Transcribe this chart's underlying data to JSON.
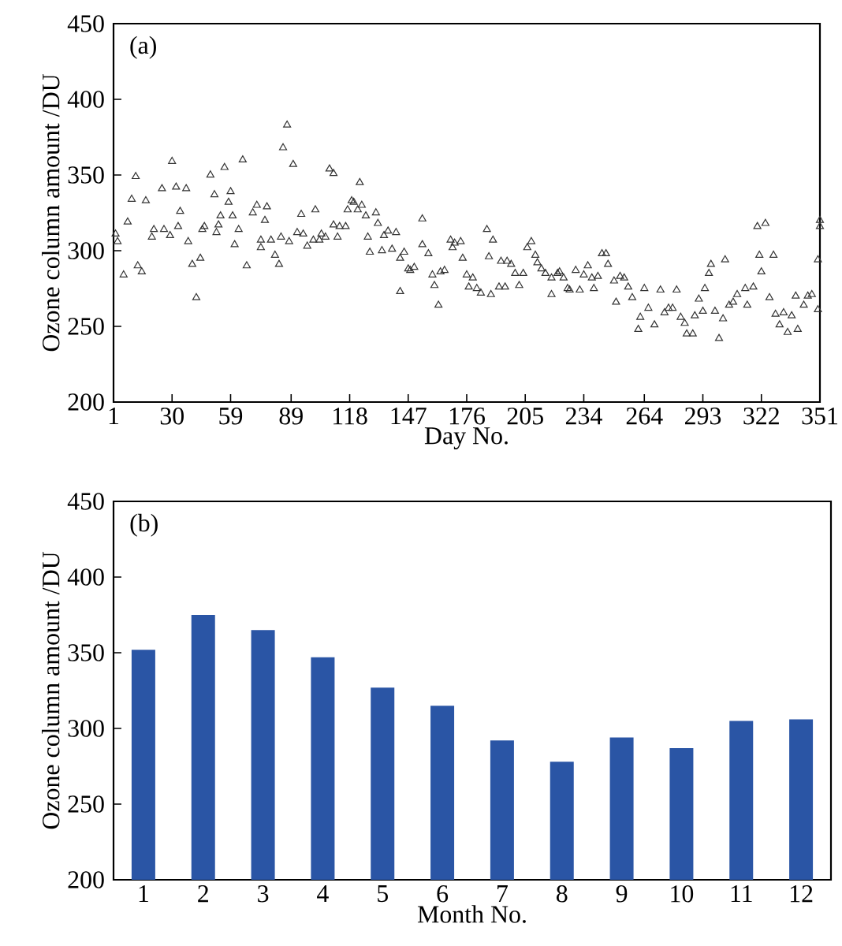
{
  "chart_data": [
    {
      "type": "scatter",
      "xlabel": "Day No.",
      "ylabel": "Ozone column amount /DU",
      "annotations": [
        "(a)"
      ],
      "marker": "triangle",
      "color": "#333333",
      "xlim": [
        1,
        351
      ],
      "ylim": [
        200,
        450
      ],
      "xticks": [
        1,
        30,
        59,
        89,
        118,
        147,
        176,
        205,
        234,
        264,
        293,
        322,
        351
      ],
      "yticks": [
        200,
        250,
        300,
        350,
        400,
        450
      ],
      "x": [
        2,
        3,
        6,
        8,
        10,
        12,
        13,
        15,
        17,
        20,
        21,
        25,
        26,
        29,
        30,
        32,
        33,
        34,
        37,
        38,
        40,
        42,
        44,
        45,
        46,
        49,
        51,
        52,
        53,
        54,
        56,
        58,
        59,
        60,
        61,
        63,
        65,
        67,
        70,
        72,
        74,
        74,
        76,
        77,
        79,
        81,
        83,
        84,
        85,
        87,
        88,
        90,
        92,
        94,
        95,
        97,
        100,
        101,
        103,
        104,
        106,
        108,
        110,
        110,
        112,
        113,
        116,
        117,
        119,
        120,
        122,
        123,
        124,
        126,
        127,
        128,
        131,
        132,
        134,
        135,
        137,
        139,
        141,
        143,
        143,
        145,
        147,
        148,
        150,
        154,
        154,
        157,
        159,
        160,
        162,
        163,
        165,
        168,
        169,
        170,
        173,
        174,
        176,
        177,
        179,
        181,
        183,
        186,
        187,
        188,
        189,
        192,
        193,
        195,
        196,
        198,
        200,
        202,
        204,
        206,
        208,
        210,
        211,
        213,
        215,
        218,
        218,
        221,
        222,
        224,
        226,
        227,
        230,
        232,
        234,
        236,
        238,
        239,
        241,
        243,
        245,
        246,
        249,
        250,
        252,
        254,
        256,
        258,
        261,
        262,
        264,
        266,
        269,
        272,
        274,
        276,
        278,
        280,
        282,
        284,
        285,
        288,
        289,
        291,
        293,
        294,
        296,
        297,
        299,
        301,
        303,
        304,
        306,
        308,
        310,
        314,
        315,
        318,
        320,
        321,
        322,
        324,
        326,
        328,
        329,
        331,
        333,
        335,
        337,
        339,
        340,
        343,
        345,
        347,
        350,
        350,
        351,
        351
      ],
      "values": [
        311,
        306,
        284,
        319,
        334,
        349,
        290,
        286,
        333,
        309,
        314,
        341,
        314,
        310,
        359,
        342,
        316,
        326,
        341,
        306,
        291,
        269,
        295,
        314,
        316,
        350,
        337,
        312,
        317,
        323,
        355,
        332,
        339,
        323,
        304,
        314,
        360,
        290,
        325,
        330,
        302,
        307,
        320,
        329,
        307,
        297,
        291,
        309,
        368,
        383,
        306,
        357,
        312,
        324,
        311,
        303,
        307,
        327,
        307,
        311,
        309,
        354,
        351,
        317,
        309,
        316,
        316,
        327,
        333,
        332,
        327,
        345,
        330,
        323,
        309,
        299,
        325,
        318,
        300,
        310,
        313,
        301,
        312,
        295,
        273,
        299,
        288,
        287,
        289,
        321,
        304,
        298,
        284,
        277,
        264,
        286,
        287,
        307,
        302,
        305,
        306,
        295,
        284,
        276,
        282,
        275,
        272,
        314,
        296,
        271,
        307,
        276,
        293,
        276,
        293,
        291,
        285,
        277,
        285,
        302,
        306,
        297,
        292,
        288,
        285,
        282,
        271,
        285,
        286,
        282,
        275,
        274,
        287,
        274,
        284,
        290,
        282,
        275,
        283,
        298,
        298,
        291,
        280,
        266,
        283,
        282,
        276,
        269,
        248,
        256,
        275,
        262,
        251,
        274,
        259,
        262,
        262,
        274,
        256,
        252,
        245,
        245,
        257,
        268,
        260,
        275,
        285,
        291,
        260,
        242,
        255,
        294,
        264,
        266,
        271,
        275,
        264,
        276,
        316,
        297,
        286,
        318,
        269,
        297,
        258,
        251,
        259,
        246,
        257,
        270,
        248,
        264,
        270,
        271,
        261,
        294,
        316,
        320
      ]
    },
    {
      "type": "bar",
      "xlabel": "Month No.",
      "ylabel": "Ozone column amount /DU",
      "annotations": [
        "(b)"
      ],
      "color": "#2a55a5",
      "categories": [
        "1",
        "2",
        "3",
        "4",
        "5",
        "6",
        "7",
        "8",
        "9",
        "10",
        "11",
        "12"
      ],
      "values": [
        352,
        375,
        365,
        347,
        327,
        315,
        292,
        278,
        294,
        287,
        305,
        306
      ],
      "ylim": [
        200,
        450
      ],
      "yticks": [
        200,
        250,
        300,
        350,
        400,
        450
      ]
    }
  ]
}
